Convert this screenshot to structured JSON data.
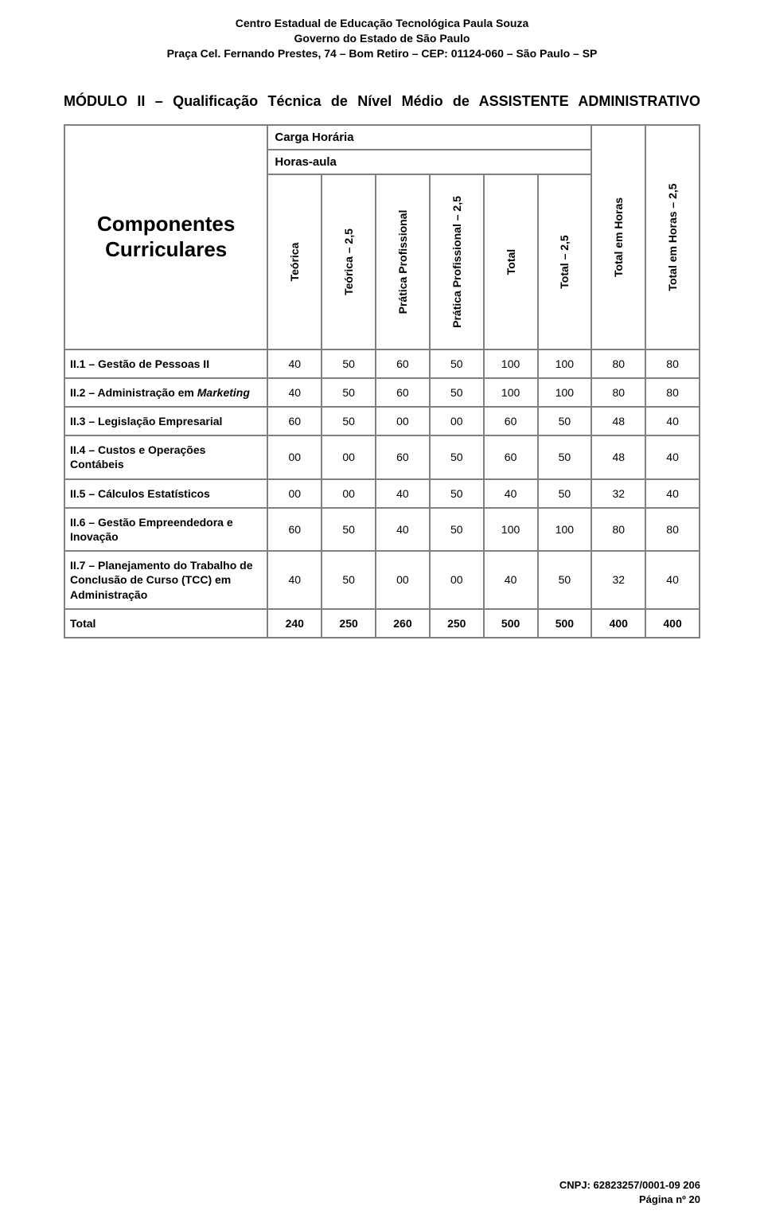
{
  "header": {
    "line1": "Centro Estadual de Educação Tecnológica Paula Souza",
    "line2": "Governo do Estado de São Paulo",
    "line3": "Praça Cel. Fernando Prestes, 74 – Bom Retiro – CEP: 01124-060 – São Paulo – SP"
  },
  "module_title": "MÓDULO II – Qualificação Técnica de Nível Médio de ASSISTENTE ADMINISTRATIVO",
  "table": {
    "carga_label": "Carga Horária",
    "horas_label": "Horas-aula",
    "big_label_line1": "Componentes",
    "big_label_line2": "Curriculares",
    "columns": [
      "Teórica",
      "Teórica – 2,5",
      "Prática Profissional",
      "Prática Profissional – 2,5",
      "Total",
      "Total – 2,5",
      "Total em Horas",
      "Total em Horas – 2,5"
    ],
    "col_widths_pct": [
      32,
      8.5,
      8.5,
      8.5,
      8.5,
      8.5,
      8.5,
      8.5,
      8.5
    ],
    "rows": [
      {
        "label": "II.1 – Gestão de Pessoas II",
        "values": [
          "40",
          "50",
          "60",
          "50",
          "100",
          "100",
          "80",
          "80"
        ]
      },
      {
        "label_html": "II.2 – Administração em <span class='italic'>Marketing</span>",
        "values": [
          "40",
          "50",
          "60",
          "50",
          "100",
          "100",
          "80",
          "80"
        ]
      },
      {
        "label": "II.3 – Legislação Empresarial",
        "values": [
          "60",
          "50",
          "00",
          "00",
          "60",
          "50",
          "48",
          "40"
        ]
      },
      {
        "label": "II.4 – Custos e Operações Contábeis",
        "values": [
          "00",
          "00",
          "60",
          "50",
          "60",
          "50",
          "48",
          "40"
        ]
      },
      {
        "label": "II.5 – Cálculos Estatísticos",
        "values": [
          "00",
          "00",
          "40",
          "50",
          "40",
          "50",
          "32",
          "40"
        ]
      },
      {
        "label": "II.6 – Gestão Empreendedora e Inovação",
        "values": [
          "60",
          "50",
          "40",
          "50",
          "100",
          "100",
          "80",
          "80"
        ]
      },
      {
        "label": "II.7 – Planejamento do Trabalho de Conclusão de Curso (TCC) em Administração",
        "values": [
          "40",
          "50",
          "00",
          "00",
          "40",
          "50",
          "32",
          "40"
        ]
      }
    ],
    "total_row": {
      "label": "Total",
      "values": [
        "240",
        "250",
        "260",
        "250",
        "500",
        "500",
        "400",
        "400"
      ]
    }
  },
  "footer": {
    "cnpj": "CNPJ: 62823257/0001-09 206",
    "page": "Página nº 20"
  },
  "style": {
    "border_color": "#808080",
    "background": "#ffffff",
    "text_color": "#000000",
    "header_fontsize": 14,
    "module_title_fontsize": 18,
    "big_label_fontsize": 26,
    "col_head_fontsize": 14,
    "cell_fontsize": 14,
    "footer_fontsize": 13
  }
}
